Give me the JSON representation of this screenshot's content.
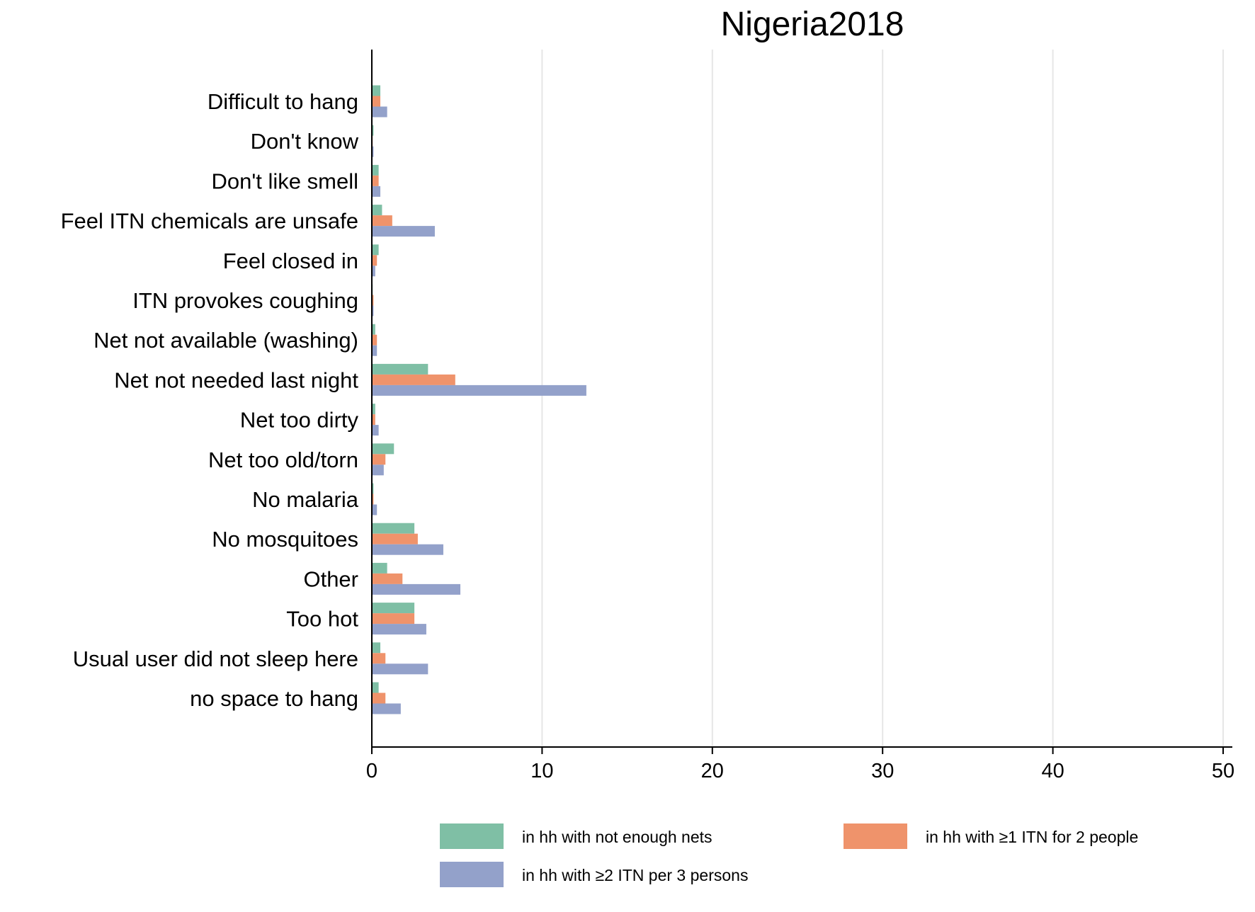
{
  "chart_data": {
    "type": "bar",
    "orientation": "horizontal",
    "title": "Nigeria2018",
    "xlabel": "",
    "ylabel": "",
    "xlim": [
      0,
      50
    ],
    "x_ticks": [
      0,
      10,
      20,
      30,
      40,
      50
    ],
    "grid": "vertical",
    "legend_position": "bottom",
    "categories": [
      "Difficult to hang",
      "Don't know",
      "Don't like smell",
      "Feel ITN chemicals are unsafe",
      "Feel closed in",
      "ITN provokes coughing",
      "Net not available (washing)",
      "Net not needed last night",
      "Net too dirty",
      "Net too old/torn",
      "No malaria",
      "No mosquitoes",
      "Other",
      "Too hot",
      "Usual user did not sleep here",
      "no space to hang"
    ],
    "series": [
      {
        "name": "in hh with not enough nets",
        "color": "#7fbfa5",
        "values": [
          0.5,
          0.1,
          0.4,
          0.6,
          0.4,
          0.05,
          0.2,
          3.3,
          0.2,
          1.3,
          0.1,
          2.5,
          0.9,
          2.5,
          0.5,
          0.4
        ]
      },
      {
        "name": "in hh with ≥1 ITN for 2 people",
        "color": "#ef936b",
        "values": [
          0.5,
          0.05,
          0.4,
          1.2,
          0.3,
          0.1,
          0.3,
          4.9,
          0.2,
          0.8,
          0.1,
          2.7,
          1.8,
          2.5,
          0.8,
          0.8
        ]
      },
      {
        "name": "in hh with ≥2 ITN per 3 persons",
        "color": "#93a1ca",
        "values": [
          0.9,
          0.1,
          0.5,
          3.7,
          0.2,
          0.1,
          0.3,
          12.6,
          0.4,
          0.7,
          0.3,
          4.2,
          5.2,
          3.2,
          3.3,
          1.7
        ]
      }
    ]
  }
}
